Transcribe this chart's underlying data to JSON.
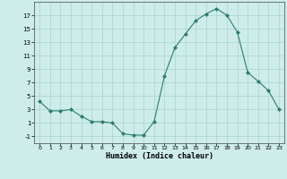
{
  "x": [
    0,
    1,
    2,
    3,
    4,
    5,
    6,
    7,
    8,
    9,
    10,
    11,
    12,
    13,
    14,
    15,
    16,
    17,
    18,
    19,
    20,
    21,
    22,
    23
  ],
  "y": [
    4.2,
    2.8,
    2.8,
    3.0,
    2.0,
    1.2,
    1.2,
    1.0,
    -0.6,
    -0.8,
    -0.8,
    1.2,
    8.0,
    12.2,
    14.2,
    16.2,
    17.2,
    18.0,
    17.0,
    14.5,
    8.5,
    7.2,
    5.8,
    3.0
  ],
  "line_color": "#2d7d6d",
  "marker_color": "#2d7d6d",
  "bg_color": "#ceecea",
  "grid_color": "#add8d4",
  "xlabel": "Humidex (Indice chaleur)",
  "yticks": [
    -1,
    1,
    3,
    5,
    7,
    9,
    11,
    13,
    15,
    17
  ],
  "xticks": [
    0,
    1,
    2,
    3,
    4,
    5,
    6,
    7,
    8,
    9,
    10,
    11,
    12,
    13,
    14,
    15,
    16,
    17,
    18,
    19,
    20,
    21,
    22,
    23
  ],
  "ylim": [
    -2.0,
    19.0
  ],
  "xlim": [
    -0.5,
    23.5
  ]
}
